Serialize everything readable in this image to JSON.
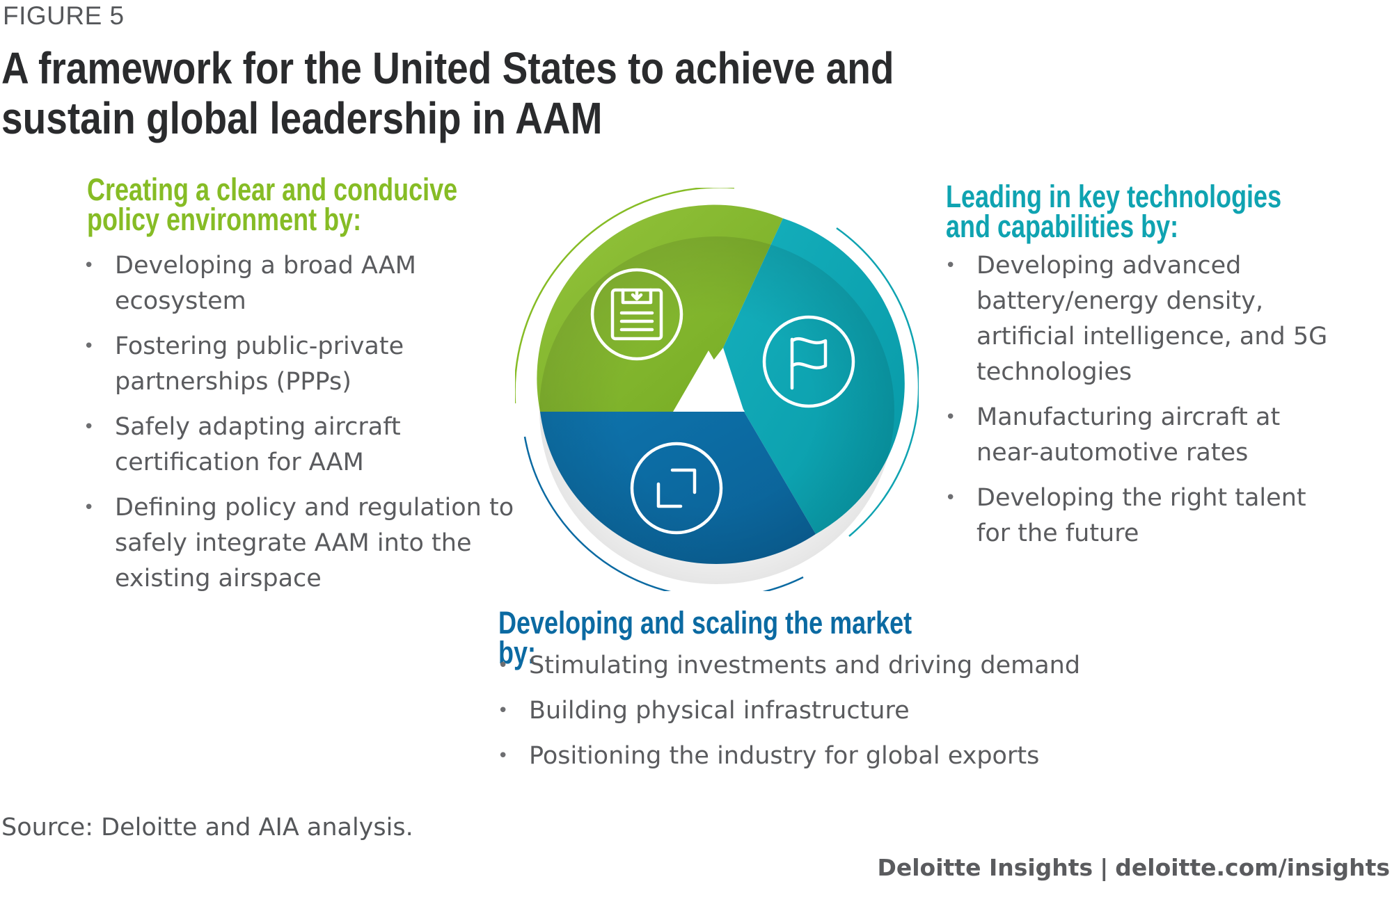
{
  "figure_label": "FIGURE 5",
  "title": "A framework for the United States to achieve and sustain global leadership in AAM",
  "sections": {
    "policy": {
      "heading": "Creating a clear and conducive policy environment by:",
      "color": "#86bc25",
      "icon": "document-download-icon",
      "items": [
        "Developing a broad AAM ecosystem",
        "Fostering public-private partnerships (PPPs)",
        "Safely adapting aircraft certification for AAM",
        "Defining policy and regulation to safely integrate AAM into the existing airspace"
      ]
    },
    "technology": {
      "heading": "Leading in key technologies and capabilities by:",
      "color": "#0fa3b1",
      "icon": "flag-icon",
      "items": [
        "Developing advanced battery/energy density, artificial intelligence, and 5G technologies",
        "Manufacturing aircraft at near-automotive rates",
        "Developing the right talent for the future"
      ]
    },
    "market": {
      "heading": "Developing and scaling the market by:",
      "color": "#0b6aa2",
      "icon": "expand-arrows-icon",
      "items": [
        "Stimulating investments and driving demand",
        "Building physical infrastructure",
        "Positioning the industry for global exports"
      ]
    }
  },
  "source": "Source: Deloitte and AIA analysis.",
  "credit": {
    "brand": "Deloitte Insights",
    "separator": "|",
    "url": "deloitte.com/insights"
  }
}
